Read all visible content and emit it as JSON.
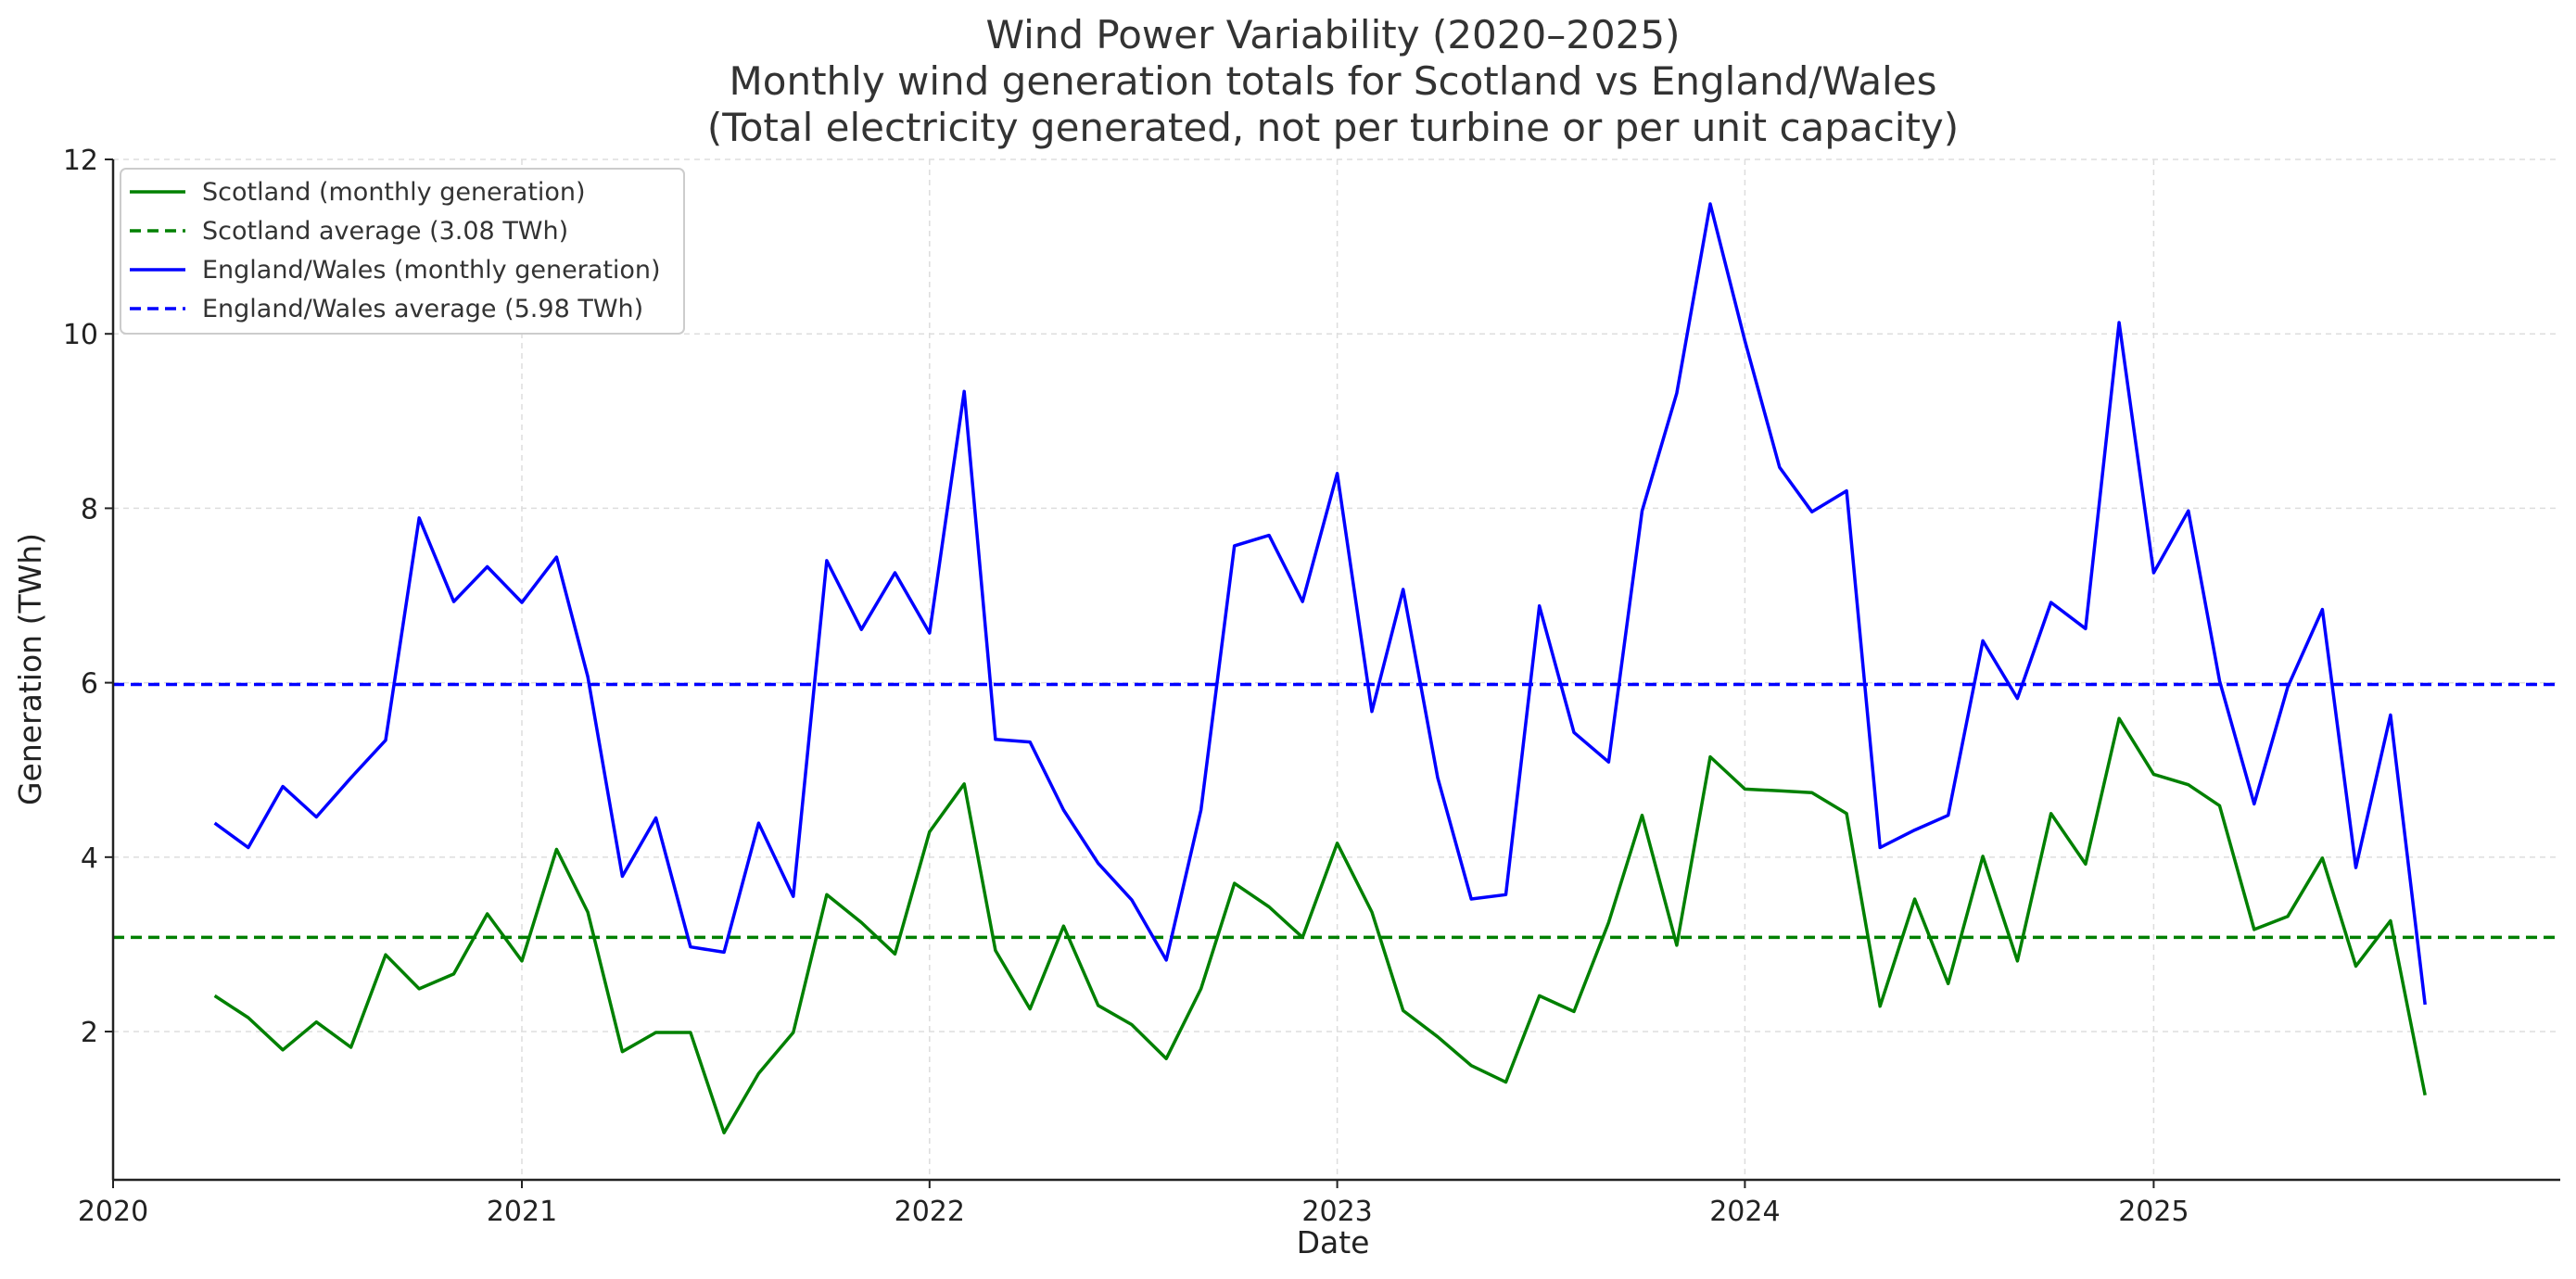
{
  "chart_data": {
    "type": "line",
    "title_lines": [
      "Wind Power Variability (2020–2025)",
      "Monthly wind generation totals for Scotland vs England/Wales",
      "(Total electricity generated, not per turbine or per unit capacity)"
    ],
    "xlabel": "Date",
    "ylabel": "Generation (TWh)",
    "xlim": [
      "2020-01-01",
      "2025-12-31"
    ],
    "ylim": [
      0.3,
      12
    ],
    "x_ticks": [
      "2020",
      "2021",
      "2022",
      "2023",
      "2024",
      "2025"
    ],
    "y_ticks": [
      2,
      4,
      6,
      8,
      10,
      12
    ],
    "grid": true,
    "legend_position": "top-left",
    "x": [
      "2020-04",
      "2020-05",
      "2020-06",
      "2020-07",
      "2020-08",
      "2020-09",
      "2020-10",
      "2020-11",
      "2020-12",
      "2021-01",
      "2021-02",
      "2021-03",
      "2021-04",
      "2021-05",
      "2021-06",
      "2021-07",
      "2021-08",
      "2021-09",
      "2021-10",
      "2021-11",
      "2021-12",
      "2022-01",
      "2022-02",
      "2022-03",
      "2022-04",
      "2022-05",
      "2022-06",
      "2022-07",
      "2022-08",
      "2022-09",
      "2022-10",
      "2022-11",
      "2022-12",
      "2023-01",
      "2023-02",
      "2023-03",
      "2023-04",
      "2023-05",
      "2023-06",
      "2023-07",
      "2023-08",
      "2023-09",
      "2023-10",
      "2023-11",
      "2023-12",
      "2024-01",
      "2024-02",
      "2024-03",
      "2024-04",
      "2024-05",
      "2024-06",
      "2024-07",
      "2024-08",
      "2024-09",
      "2024-10",
      "2024-11",
      "2024-12",
      "2025-01",
      "2025-02",
      "2025-03",
      "2025-04",
      "2025-05",
      "2025-06",
      "2025-07",
      "2025-08",
      "2025-09"
    ],
    "series": [
      {
        "name": "Scotland (monthly generation)",
        "color": "#008000",
        "style": "solid",
        "values": [
          2.41,
          2.16,
          1.79,
          2.11,
          1.82,
          2.88,
          2.49,
          2.66,
          3.35,
          2.81,
          4.09,
          3.37,
          1.77,
          1.99,
          1.99,
          0.84,
          1.52,
          1.99,
          3.57,
          3.25,
          2.89,
          4.29,
          4.84,
          2.93,
          2.26,
          3.21,
          2.3,
          2.08,
          1.69,
          2.49,
          3.7,
          3.43,
          3.08,
          4.16,
          3.37,
          2.24,
          1.94,
          1.61,
          1.42,
          2.41,
          2.23,
          3.25,
          4.48,
          2.99,
          5.15,
          4.78,
          4.76,
          4.74,
          4.5,
          2.29,
          3.52,
          2.55,
          4.01,
          2.81,
          4.5,
          3.92,
          5.59,
          4.95,
          4.83,
          4.59,
          3.17,
          3.32,
          3.99,
          2.75,
          3.27,
          1.27
        ]
      },
      {
        "name": "Scotland average (3.08 TWh)",
        "color": "#008000",
        "style": "dashed",
        "constant": 3.08
      },
      {
        "name": "England/Wales (monthly generation)",
        "color": "#0000ff",
        "style": "solid",
        "values": [
          4.39,
          4.11,
          4.81,
          4.46,
          4.91,
          5.34,
          7.89,
          6.93,
          7.33,
          6.92,
          7.44,
          6.07,
          3.78,
          4.45,
          2.97,
          2.91,
          4.39,
          3.55,
          7.4,
          6.61,
          7.26,
          6.57,
          9.34,
          5.35,
          5.32,
          4.54,
          3.93,
          3.51,
          2.82,
          4.54,
          7.57,
          7.69,
          6.93,
          8.4,
          5.67,
          7.07,
          4.91,
          3.52,
          3.57,
          6.88,
          5.43,
          5.09,
          7.97,
          9.32,
          11.49,
          9.92,
          8.47,
          7.96,
          8.2,
          4.11,
          4.31,
          4.48,
          6.48,
          5.82,
          6.92,
          6.62,
          10.13,
          7.26,
          7.97,
          6.02,
          4.61,
          5.95,
          6.84,
          3.88,
          5.63,
          2.31
        ]
      },
      {
        "name": "England/Wales average (5.98 TWh)",
        "color": "#0000ff",
        "style": "dashed",
        "constant": 5.98
      }
    ]
  }
}
